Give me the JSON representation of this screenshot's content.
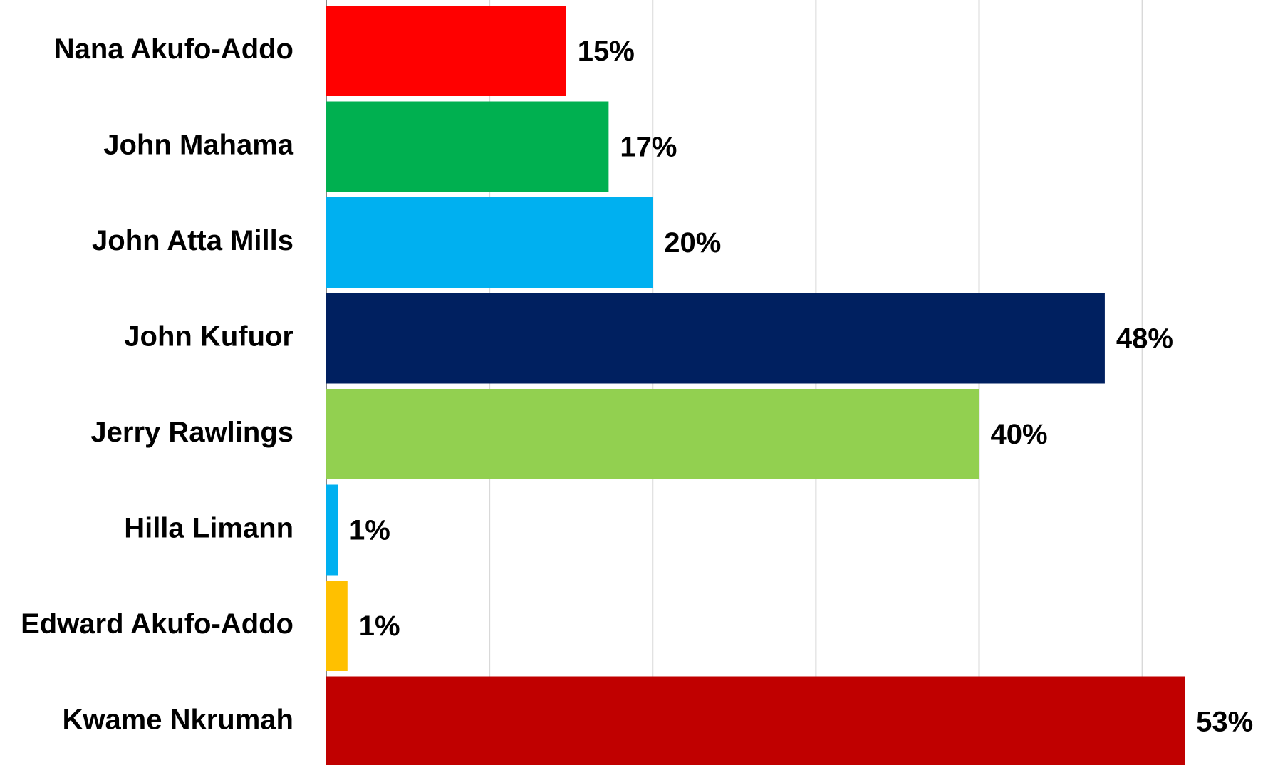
{
  "chart_data": {
    "type": "bar",
    "orientation": "horizontal",
    "categories": [
      "Nana Akufo-Addo",
      "John Mahama",
      "John Atta Mills",
      "John Kufuor",
      "Jerry Rawlings",
      "Hilla Limann",
      "Edward Akufo-Addo",
      "Kwame Nkrumah"
    ],
    "values": [
      14.7,
      17.3,
      20,
      47.7,
      40,
      0.7,
      1.3,
      52.6
    ],
    "value_labels": [
      "15%",
      "17%",
      "20%",
      "48%",
      "40%",
      "1%",
      "1%",
      "53%"
    ],
    "colors": [
      "#ff0000",
      "#00b050",
      "#00b0f0",
      "#002060",
      "#92d050",
      "#00b0f0",
      "#ffc000",
      "#c00000"
    ],
    "xlim": [
      0,
      57
    ],
    "xticks": [
      0,
      10,
      20,
      30,
      40,
      50
    ],
    "grid": true
  }
}
